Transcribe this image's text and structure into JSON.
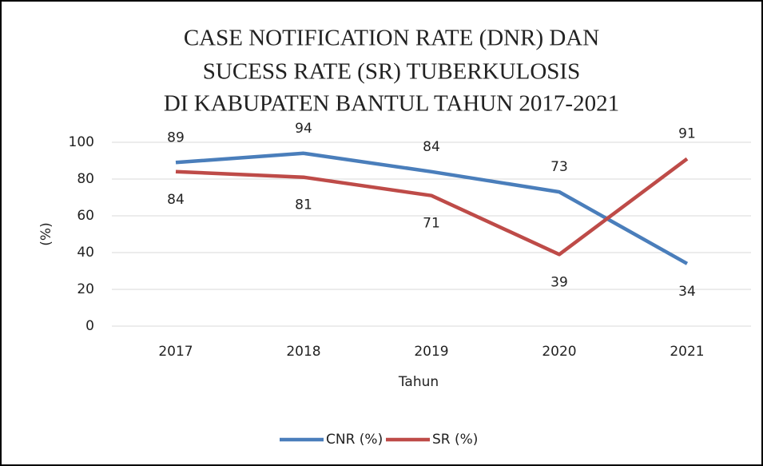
{
  "chart_data": {
    "type": "line",
    "title": [
      "CASE NOTIFICATION RATE (DNR) DAN",
      "SUCESS RATE (SR) TUBERKULOSIS",
      "DI KABUPATEN BANTUL TAHUN 2017-2021"
    ],
    "x_label": "Tahun",
    "y_label": "(%)",
    "categories": [
      "2017",
      "2018",
      "2019",
      "2020",
      "2021"
    ],
    "series": [
      {
        "name": "CNR (%)",
        "color": "#4a7ebb",
        "values": [
          89,
          94,
          84,
          73,
          34
        ]
      },
      {
        "name": "SR (%)",
        "color": "#be4b48",
        "values": [
          84,
          81,
          71,
          39,
          91
        ]
      }
    ],
    "ylim": [
      0,
      100
    ],
    "yticks": [
      0,
      20,
      40,
      60,
      80,
      100
    ],
    "grid": true,
    "legend": "bottom"
  }
}
